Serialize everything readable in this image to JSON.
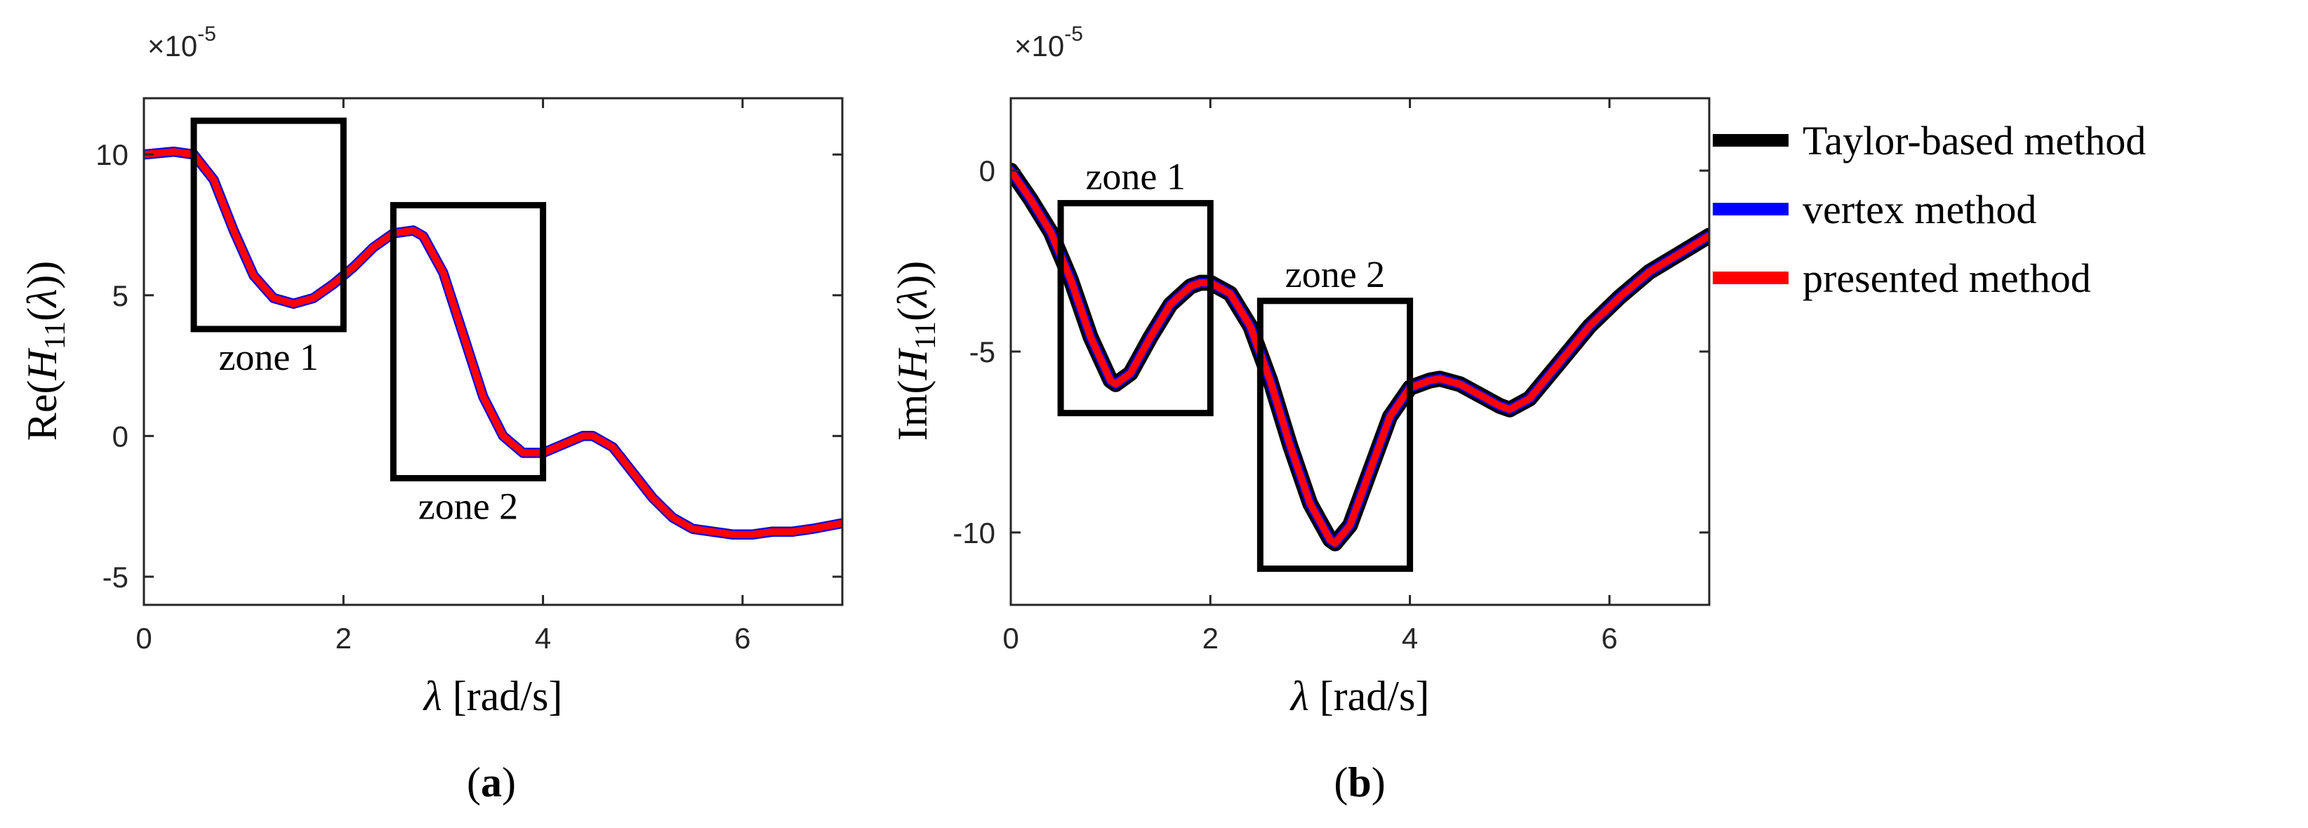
{
  "chart_data": [
    {
      "type": "line",
      "panel_label": "(a)",
      "panel_letter": "a",
      "exponent_label": "×10",
      "exponent_power": "-5",
      "ylabel": "Re(H11(λ))",
      "ylabel_parts": {
        "prefix": "Re(",
        "sym": "H",
        "sub": "11",
        "open": "(",
        "var": "λ",
        "close": "))"
      },
      "xlabel": "λ [rad/s]",
      "xlabel_parts": {
        "var": "λ",
        "unit": " [rad/s]"
      },
      "xlim": [
        0,
        7
      ],
      "ylim": [
        -6,
        12
      ],
      "xticks": [
        0,
        2,
        4,
        6
      ],
      "xtick_labels": [
        "0",
        "2",
        "4",
        "6"
      ],
      "yticks": [
        -5,
        0,
        5,
        10
      ],
      "ytick_labels": [
        "-5",
        "0",
        "5",
        "10"
      ],
      "grid": false,
      "band_half_width": 0.18,
      "series": [
        {
          "name": "Taylor-based method",
          "color": "#000000",
          "x": [
            0,
            0.3,
            0.5,
            0.7,
            0.9,
            1.1,
            1.3,
            1.5,
            1.7,
            1.9,
            2.1,
            2.3,
            2.5,
            2.7,
            2.8,
            3.0,
            3.2,
            3.4,
            3.6,
            3.8,
            4.0,
            4.2,
            4.4,
            4.5,
            4.7,
            4.9,
            5.1,
            5.3,
            5.5,
            5.7,
            5.9,
            6.1,
            6.3,
            6.5,
            6.7,
            7.0
          ],
          "y": [
            10.0,
            10.1,
            10.0,
            9.1,
            7.3,
            5.7,
            4.9,
            4.7,
            4.9,
            5.4,
            6.0,
            6.7,
            7.2,
            7.3,
            7.1,
            5.8,
            3.6,
            1.4,
            0.0,
            -0.6,
            -0.6,
            -0.3,
            0.0,
            0.0,
            -0.4,
            -1.3,
            -2.2,
            -2.9,
            -3.3,
            -3.4,
            -3.5,
            -3.5,
            -3.4,
            -3.4,
            -3.3,
            -3.1
          ]
        },
        {
          "name": "vertex method",
          "color": "#0000ff",
          "x": [
            0,
            0.3,
            0.5,
            0.7,
            0.9,
            1.1,
            1.3,
            1.5,
            1.7,
            1.9,
            2.1,
            2.3,
            2.5,
            2.7,
            2.8,
            3.0,
            3.2,
            3.4,
            3.6,
            3.8,
            4.0,
            4.2,
            4.4,
            4.5,
            4.7,
            4.9,
            5.1,
            5.3,
            5.5,
            5.7,
            5.9,
            6.1,
            6.3,
            6.5,
            6.7,
            7.0
          ],
          "y": [
            10.0,
            10.1,
            10.0,
            9.1,
            7.3,
            5.7,
            4.9,
            4.7,
            4.9,
            5.4,
            6.0,
            6.7,
            7.2,
            7.3,
            7.1,
            5.8,
            3.6,
            1.4,
            0.0,
            -0.6,
            -0.6,
            -0.3,
            0.0,
            0.0,
            -0.4,
            -1.3,
            -2.2,
            -2.9,
            -3.3,
            -3.4,
            -3.5,
            -3.5,
            -3.4,
            -3.4,
            -3.3,
            -3.1
          ]
        },
        {
          "name": "presented method",
          "color": "#ff0000",
          "x": [
            0,
            0.3,
            0.5,
            0.7,
            0.9,
            1.1,
            1.3,
            1.5,
            1.7,
            1.9,
            2.1,
            2.3,
            2.5,
            2.7,
            2.8,
            3.0,
            3.2,
            3.4,
            3.6,
            3.8,
            4.0,
            4.2,
            4.4,
            4.5,
            4.7,
            4.9,
            5.1,
            5.3,
            5.5,
            5.7,
            5.9,
            6.1,
            6.3,
            6.5,
            6.7,
            7.0
          ],
          "y": [
            10.0,
            10.1,
            10.0,
            9.1,
            7.3,
            5.7,
            4.9,
            4.7,
            4.9,
            5.4,
            6.0,
            6.7,
            7.2,
            7.3,
            7.1,
            5.8,
            3.6,
            1.4,
            0.0,
            -0.6,
            -0.6,
            -0.3,
            0.0,
            0.0,
            -0.4,
            -1.3,
            -2.2,
            -2.9,
            -3.3,
            -3.4,
            -3.5,
            -3.5,
            -3.4,
            -3.4,
            -3.3,
            -3.1
          ]
        }
      ],
      "annotations": [
        {
          "text": "zone 1",
          "box": {
            "x0": 0.5,
            "x1": 2.0,
            "y0": 3.8,
            "y1": 11.2
          },
          "label_side": "below"
        },
        {
          "text": "zone 2",
          "box": {
            "x0": 2.5,
            "x1": 4.0,
            "y0": -1.5,
            "y1": 8.2
          },
          "label_side": "below"
        }
      ]
    },
    {
      "type": "line",
      "panel_label": "(b)",
      "panel_letter": "b",
      "exponent_label": "×10",
      "exponent_power": "-5",
      "ylabel": "Im(H11(λ))",
      "ylabel_parts": {
        "prefix": "Im(",
        "sym": "H",
        "sub": "11",
        "open": "(",
        "var": "λ",
        "close": "))"
      },
      "xlabel": "λ [rad/s]",
      "xlabel_parts": {
        "var": "λ",
        "unit": " [rad/s]"
      },
      "xlim": [
        0,
        7
      ],
      "ylim": [
        -12,
        2
      ],
      "xticks": [
        0,
        2,
        4,
        6
      ],
      "xtick_labels": [
        "0",
        "2",
        "4",
        "6"
      ],
      "yticks": [
        -10,
        -5,
        0
      ],
      "ytick_labels": [
        "-10",
        "-5",
        "0"
      ],
      "grid": false,
      "band_half_width": 0.22,
      "series": [
        {
          "name": "Taylor-based method",
          "color": "#000000",
          "x": [
            0,
            0.2,
            0.4,
            0.6,
            0.8,
            1.0,
            1.05,
            1.2,
            1.4,
            1.6,
            1.8,
            1.9,
            2.0,
            2.2,
            2.4,
            2.6,
            2.8,
            3.0,
            3.2,
            3.25,
            3.4,
            3.6,
            3.8,
            4.0,
            4.2,
            4.3,
            4.5,
            4.7,
            4.9,
            5.0,
            5.2,
            5.5,
            5.8,
            6.1,
            6.4,
            6.7,
            7.0
          ],
          "y": [
            0.0,
            -0.8,
            -1.7,
            -3.0,
            -4.6,
            -5.8,
            -5.9,
            -5.6,
            -4.6,
            -3.7,
            -3.2,
            -3.1,
            -3.1,
            -3.4,
            -4.3,
            -5.8,
            -7.6,
            -9.2,
            -10.2,
            -10.3,
            -9.8,
            -8.3,
            -6.8,
            -6.0,
            -5.8,
            -5.75,
            -5.9,
            -6.2,
            -6.5,
            -6.6,
            -6.3,
            -5.3,
            -4.3,
            -3.5,
            -2.8,
            -2.3,
            -1.8
          ]
        },
        {
          "name": "vertex method",
          "color": "#0000ff",
          "x": [
            0,
            0.2,
            0.4,
            0.6,
            0.8,
            1.0,
            1.05,
            1.2,
            1.4,
            1.6,
            1.8,
            1.9,
            2.0,
            2.2,
            2.4,
            2.6,
            2.8,
            3.0,
            3.2,
            3.25,
            3.4,
            3.6,
            3.8,
            4.0,
            4.2,
            4.3,
            4.5,
            4.7,
            4.9,
            5.0,
            5.2,
            5.5,
            5.8,
            6.1,
            6.4,
            6.7,
            7.0
          ],
          "y": [
            0.0,
            -0.8,
            -1.7,
            -3.0,
            -4.6,
            -5.8,
            -5.9,
            -5.6,
            -4.6,
            -3.7,
            -3.2,
            -3.1,
            -3.1,
            -3.4,
            -4.3,
            -5.8,
            -7.6,
            -9.2,
            -10.2,
            -10.3,
            -9.8,
            -8.3,
            -6.8,
            -6.0,
            -5.8,
            -5.75,
            -5.9,
            -6.2,
            -6.5,
            -6.6,
            -6.3,
            -5.3,
            -4.3,
            -3.5,
            -2.8,
            -2.3,
            -1.8
          ]
        },
        {
          "name": "presented method",
          "color": "#ff0000",
          "x": [
            0,
            0.2,
            0.4,
            0.6,
            0.8,
            1.0,
            1.05,
            1.2,
            1.4,
            1.6,
            1.8,
            1.9,
            2.0,
            2.2,
            2.4,
            2.6,
            2.8,
            3.0,
            3.2,
            3.25,
            3.4,
            3.6,
            3.8,
            4.0,
            4.2,
            4.3,
            4.5,
            4.7,
            4.9,
            5.0,
            5.2,
            5.5,
            5.8,
            6.1,
            6.4,
            6.7,
            7.0
          ],
          "y": [
            0.0,
            -0.8,
            -1.7,
            -3.0,
            -4.6,
            -5.8,
            -5.9,
            -5.6,
            -4.6,
            -3.7,
            -3.2,
            -3.1,
            -3.1,
            -3.4,
            -4.3,
            -5.8,
            -7.6,
            -9.2,
            -10.2,
            -10.3,
            -9.8,
            -8.3,
            -6.8,
            -6.0,
            -5.8,
            -5.75,
            -5.9,
            -6.2,
            -6.5,
            -6.6,
            -6.3,
            -5.3,
            -4.3,
            -3.5,
            -2.8,
            -2.3,
            -1.8
          ]
        }
      ],
      "annotations": [
        {
          "text": "zone 1",
          "box": {
            "x0": 0.5,
            "x1": 2.0,
            "y0": -6.7,
            "y1": -0.9
          },
          "label_side": "above"
        },
        {
          "text": "zone 2",
          "box": {
            "x0": 2.5,
            "x1": 4.0,
            "y0": -11.0,
            "y1": -3.6
          },
          "label_side": "above"
        }
      ]
    }
  ],
  "legend": {
    "placement": "right",
    "items": [
      {
        "label": "Taylor-based method",
        "color": "#000000"
      },
      {
        "label": "vertex method",
        "color": "#0000ff"
      },
      {
        "label": "presented method",
        "color": "#ff0000"
      }
    ]
  }
}
